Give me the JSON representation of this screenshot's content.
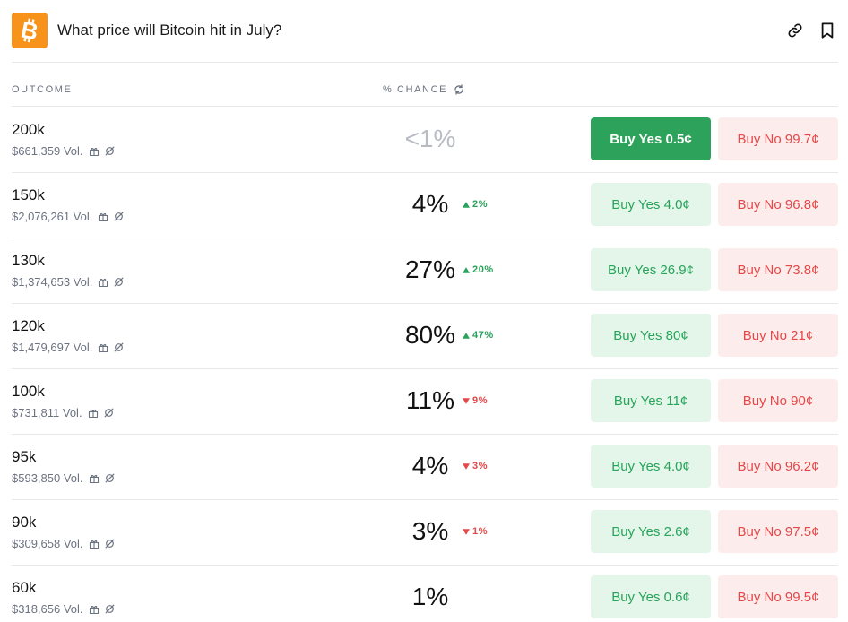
{
  "header": {
    "title": "What price will Bitcoin hit in July?",
    "logo_icon": "bitcoin-icon",
    "link_icon": "link-icon",
    "bookmark_icon": "bookmark-icon"
  },
  "columns": {
    "outcome": "OUTCOME",
    "chance": "% CHANCE"
  },
  "colors": {
    "accent_green": "#2da25a",
    "green_text": "#27a35a",
    "red_text": "#e54848",
    "logo_orange": "#f7931a"
  },
  "rows": [
    {
      "name": "200k",
      "volume": "$661,359 Vol.",
      "chance": "<1%",
      "faded": true,
      "delta": "",
      "dir": "",
      "yes": "Buy Yes 0.5¢",
      "no": "Buy No 99.7¢",
      "solid": true,
      "gift": true
    },
    {
      "name": "150k",
      "volume": "$2,076,261 Vol.",
      "chance": "4%",
      "faded": false,
      "delta": "2%",
      "dir": "up",
      "yes": "Buy Yes 4.0¢",
      "no": "Buy No 96.8¢",
      "solid": false,
      "gift": true
    },
    {
      "name": "130k",
      "volume": "$1,374,653 Vol.",
      "chance": "27%",
      "faded": false,
      "delta": "20%",
      "dir": "up",
      "yes": "Buy Yes 26.9¢",
      "no": "Buy No 73.8¢",
      "solid": false,
      "gift": true
    },
    {
      "name": "120k",
      "volume": "$1,479,697 Vol.",
      "chance": "80%",
      "faded": false,
      "delta": "47%",
      "dir": "up",
      "yes": "Buy Yes 80¢",
      "no": "Buy No 21¢",
      "solid": false,
      "gift": true
    },
    {
      "name": "100k",
      "volume": "$731,811 Vol.",
      "chance": "11%",
      "faded": false,
      "delta": "9%",
      "dir": "down",
      "yes": "Buy Yes 11¢",
      "no": "Buy No 90¢",
      "solid": false,
      "gift": true
    },
    {
      "name": "95k",
      "volume": "$593,850 Vol.",
      "chance": "4%",
      "faded": false,
      "delta": "3%",
      "dir": "down",
      "yes": "Buy Yes 4.0¢",
      "no": "Buy No 96.2¢",
      "solid": false,
      "gift": true
    },
    {
      "name": "90k",
      "volume": "$309,658 Vol.",
      "chance": "3%",
      "faded": false,
      "delta": "1%",
      "dir": "down",
      "yes": "Buy Yes 2.6¢",
      "no": "Buy No 97.5¢",
      "solid": false,
      "gift": true
    },
    {
      "name": "60k",
      "volume": "$318,656 Vol.",
      "chance": "1%",
      "faded": false,
      "delta": "",
      "dir": "",
      "yes": "Buy Yes 0.6¢",
      "no": "Buy No 99.5¢",
      "solid": false,
      "gift": true
    }
  ]
}
